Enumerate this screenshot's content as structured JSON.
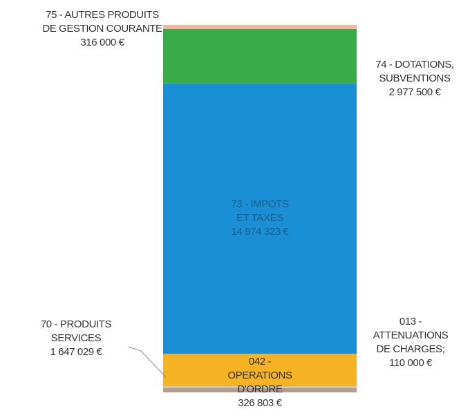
{
  "chart_data": {
    "type": "bar",
    "subtype": "stacked-single-column",
    "unit": "€",
    "segments": [
      {
        "name": "013 - ATTENUATIONS DE CHARGES",
        "value": 110000,
        "color": "#b89a8a",
        "label_lines": [
          "013 -",
          "ATTENUATIONS",
          "DE CHARGES;",
          "110 000 €"
        ]
      },
      {
        "name": "70 - PRODUITS SERVICES",
        "value": 1647029,
        "color": "#bfc8c8",
        "label_lines": [
          "70 - PRODUITS",
          "SERVICES",
          "1 647 029 €"
        ]
      },
      {
        "name": "042 - OPERATIONS D'ORDRE",
        "value": 326803,
        "color": "#f5b223",
        "label_lines": [
          "042 -",
          "OPERATIONS",
          "D'ORDRE",
          "326 803 €"
        ]
      },
      {
        "name": "73 - IMPOTS ET TAXES",
        "value": 14974323,
        "color": "#1b8fd6",
        "label_lines": [
          "73 - IMPOTS",
          "ET TAXES",
          "14 974 323 €"
        ]
      },
      {
        "name": "74 - DOTATIONS, SUBVENTIONS",
        "value": 2977500,
        "color": "#3aab49",
        "label_lines": [
          "74 - DOTATIONS,",
          "SUBVENTIONS",
          "2 977 500 €"
        ]
      },
      {
        "name": "75 - AUTRES PRODUITS DE GESTION COURANTE",
        "value": 316000,
        "color": "#f2b8a2",
        "label_lines": [
          "75 - AUTRES PRODUITS",
          "DE GESTION COURANTE",
          "316 000 €"
        ]
      }
    ]
  }
}
